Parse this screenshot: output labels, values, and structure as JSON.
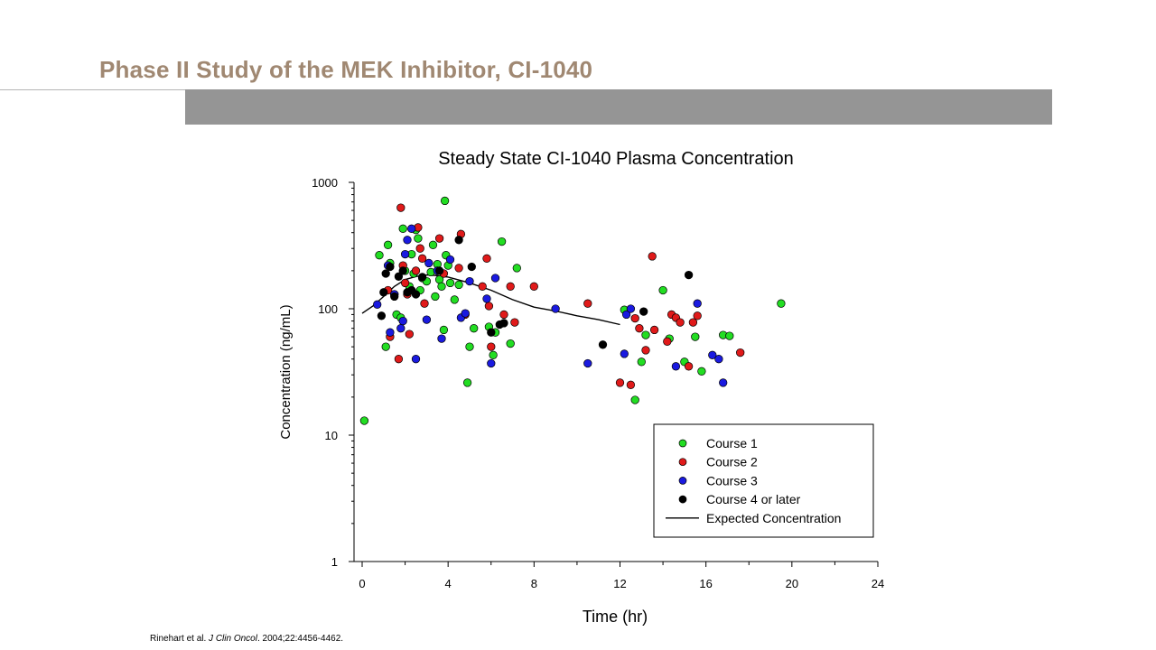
{
  "slide": {
    "title": "Phase II Study of the MEK Inhibitor, CI-1040",
    "title_color": "#a08872",
    "bar_color": "#959595"
  },
  "citation": {
    "authors": "Rinehart  et al. ",
    "journal": "J Clin Oncol",
    "details": ". 2004;22:4456-4462."
  },
  "chart_data": {
    "type": "scatter",
    "title": "Steady State CI-1040 Plasma Concentration",
    "xlabel": "Time (hr)",
    "ylabel": "Concentration (ng/mL)",
    "xlim": [
      0,
      24
    ],
    "ylim": [
      1,
      1000
    ],
    "yscale": "log",
    "xticks": [
      0,
      4,
      8,
      12,
      16,
      20,
      24
    ],
    "yticks": [
      1,
      10,
      100,
      1000
    ],
    "grid": false,
    "legend_position": "lower-right",
    "series": [
      {
        "name": "Course 1",
        "color": "#22dd22",
        "points": [
          [
            0.1,
            13
          ],
          [
            0.8,
            265
          ],
          [
            1.2,
            320
          ],
          [
            1.1,
            50
          ],
          [
            1.3,
            230
          ],
          [
            1.5,
            130
          ],
          [
            1.6,
            90
          ],
          [
            1.8,
            85
          ],
          [
            1.9,
            430
          ],
          [
            2.0,
            200
          ],
          [
            2.2,
            150
          ],
          [
            2.3,
            270
          ],
          [
            2.4,
            190
          ],
          [
            2.5,
            420
          ],
          [
            2.6,
            360
          ],
          [
            2.7,
            140
          ],
          [
            2.8,
            175
          ],
          [
            3.0,
            165
          ],
          [
            3.2,
            195
          ],
          [
            3.3,
            320
          ],
          [
            3.4,
            125
          ],
          [
            3.5,
            225
          ],
          [
            3.6,
            170
          ],
          [
            3.7,
            150
          ],
          [
            3.8,
            68
          ],
          [
            3.85,
            715
          ],
          [
            3.9,
            265
          ],
          [
            4.0,
            220
          ],
          [
            4.1,
            160
          ],
          [
            4.3,
            118
          ],
          [
            4.5,
            155
          ],
          [
            4.9,
            26
          ],
          [
            5.0,
            50
          ],
          [
            5.2,
            70
          ],
          [
            5.9,
            72
          ],
          [
            6.1,
            43
          ],
          [
            6.2,
            65
          ],
          [
            6.5,
            340
          ],
          [
            6.9,
            53
          ],
          [
            7.2,
            210
          ],
          [
            12.2,
            98
          ],
          [
            12.7,
            19
          ],
          [
            13.0,
            38
          ],
          [
            13.2,
            62
          ],
          [
            14.0,
            140
          ],
          [
            14.3,
            58
          ],
          [
            15.0,
            38
          ],
          [
            15.5,
            60
          ],
          [
            15.8,
            32
          ],
          [
            16.8,
            62
          ],
          [
            17.1,
            61
          ],
          [
            19.5,
            110
          ]
        ]
      },
      {
        "name": "Course 2",
        "color": "#e01a1a",
        "points": [
          [
            1.2,
            140
          ],
          [
            1.3,
            60
          ],
          [
            1.7,
            40
          ],
          [
            1.8,
            630
          ],
          [
            1.9,
            220
          ],
          [
            2.0,
            160
          ],
          [
            2.1,
            130
          ],
          [
            2.2,
            63
          ],
          [
            2.5,
            200
          ],
          [
            2.6,
            440
          ],
          [
            2.7,
            300
          ],
          [
            2.8,
            250
          ],
          [
            2.9,
            110
          ],
          [
            3.6,
            360
          ],
          [
            3.8,
            190
          ],
          [
            4.5,
            210
          ],
          [
            4.6,
            390
          ],
          [
            4.8,
            90
          ],
          [
            5.6,
            150
          ],
          [
            5.8,
            250
          ],
          [
            5.9,
            105
          ],
          [
            6.0,
            50
          ],
          [
            6.6,
            90
          ],
          [
            6.9,
            150
          ],
          [
            7.1,
            78
          ],
          [
            8.0,
            150
          ],
          [
            10.5,
            110
          ],
          [
            12.0,
            26
          ],
          [
            12.5,
            25
          ],
          [
            12.7,
            84
          ],
          [
            12.9,
            70
          ],
          [
            13.2,
            47
          ],
          [
            13.5,
            260
          ],
          [
            13.6,
            68
          ],
          [
            14.2,
            55
          ],
          [
            14.4,
            90
          ],
          [
            14.6,
            85
          ],
          [
            14.8,
            78
          ],
          [
            15.2,
            35
          ],
          [
            15.4,
            78
          ],
          [
            15.6,
            88
          ],
          [
            17.6,
            45
          ]
        ]
      },
      {
        "name": "Course 3",
        "color": "#1a1ae0",
        "points": [
          [
            0.7,
            108
          ],
          [
            1.2,
            220
          ],
          [
            1.3,
            65
          ],
          [
            1.5,
            130
          ],
          [
            1.8,
            70
          ],
          [
            1.9,
            80
          ],
          [
            2.0,
            270
          ],
          [
            2.1,
            350
          ],
          [
            2.3,
            430
          ],
          [
            2.5,
            40
          ],
          [
            3.0,
            82
          ],
          [
            3.1,
            230
          ],
          [
            3.5,
            200
          ],
          [
            3.7,
            58
          ],
          [
            4.1,
            245
          ],
          [
            4.6,
            85
          ],
          [
            4.8,
            92
          ],
          [
            5.0,
            165
          ],
          [
            5.8,
            120
          ],
          [
            6.0,
            37
          ],
          [
            6.2,
            175
          ],
          [
            9.0,
            100
          ],
          [
            10.5,
            37
          ],
          [
            12.2,
            44
          ],
          [
            12.3,
            90
          ],
          [
            12.5,
            100
          ],
          [
            14.6,
            35
          ],
          [
            15.6,
            110
          ],
          [
            16.3,
            43
          ],
          [
            16.6,
            40
          ],
          [
            16.8,
            26
          ]
        ]
      },
      {
        "name": "Course 4 or later",
        "color": "#000000",
        "points": [
          [
            0.9,
            88
          ],
          [
            1.0,
            135
          ],
          [
            1.1,
            190
          ],
          [
            1.3,
            215
          ],
          [
            1.5,
            125
          ],
          [
            1.7,
            180
          ],
          [
            1.9,
            200
          ],
          [
            2.1,
            135
          ],
          [
            2.3,
            140
          ],
          [
            2.5,
            130
          ],
          [
            2.8,
            178
          ],
          [
            3.6,
            200
          ],
          [
            4.5,
            350
          ],
          [
            5.1,
            215
          ],
          [
            6.4,
            75
          ],
          [
            6.6,
            77
          ],
          [
            6.0,
            65
          ],
          [
            11.2,
            52
          ],
          [
            13.1,
            95
          ],
          [
            15.2,
            185
          ]
        ]
      }
    ],
    "expected_concentration": {
      "name": "Expected Concentration",
      "color": "#000000",
      "x": [
        0,
        0.5,
        1,
        1.5,
        2,
        2.5,
        3,
        3.5,
        4,
        5,
        6,
        7,
        8,
        9,
        10,
        11,
        12
      ],
      "y": [
        92,
        105,
        125,
        150,
        170,
        180,
        185,
        183,
        178,
        160,
        140,
        118,
        103,
        96,
        88,
        82,
        75
      ]
    }
  }
}
